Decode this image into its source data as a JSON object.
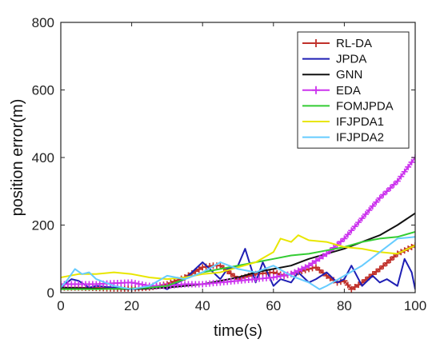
{
  "chart_data": {
    "type": "line",
    "title": "",
    "xlabel": "time(s)",
    "ylabel": "position error(m)",
    "xlim": [
      0,
      100
    ],
    "ylim": [
      0,
      800
    ],
    "xticks": [
      0,
      20,
      40,
      60,
      80,
      100
    ],
    "yticks": [
      0,
      200,
      400,
      600,
      800
    ],
    "grid": false,
    "legend_position": "top-right",
    "series": [
      {
        "name": "RL-DA",
        "color": "#c0302a",
        "marker": "plus",
        "x": [
          0,
          5,
          10,
          15,
          20,
          25,
          30,
          35,
          40,
          43,
          45,
          50,
          55,
          60,
          63,
          65,
          70,
          72,
          75,
          78,
          80,
          82,
          85,
          90,
          95,
          100
        ],
        "y": [
          15,
          15,
          14,
          12,
          12,
          15,
          25,
          45,
          75,
          80,
          80,
          40,
          55,
          60,
          50,
          55,
          70,
          75,
          50,
          30,
          35,
          10,
          30,
          70,
          115,
          140
        ]
      },
      {
        "name": "JPDA",
        "color": "#1f1fb4",
        "marker": "none",
        "x": [
          0,
          3,
          5,
          8,
          10,
          15,
          20,
          25,
          28,
          30,
          33,
          35,
          38,
          40,
          42,
          45,
          47,
          50,
          52,
          55,
          57,
          60,
          62,
          65,
          67,
          70,
          72,
          75,
          78,
          80,
          82,
          85,
          88,
          90,
          92,
          95,
          97,
          99,
          100
        ],
        "y": [
          15,
          40,
          35,
          15,
          20,
          15,
          10,
          15,
          20,
          10,
          30,
          40,
          70,
          90,
          70,
          40,
          70,
          80,
          130,
          30,
          90,
          20,
          40,
          30,
          60,
          30,
          40,
          60,
          30,
          40,
          80,
          20,
          50,
          30,
          40,
          20,
          100,
          60,
          10
        ]
      },
      {
        "name": "GNN",
        "color": "#111111",
        "marker": "none",
        "x": [
          0,
          10,
          20,
          25,
          30,
          35,
          40,
          45,
          50,
          55,
          60,
          65,
          70,
          75,
          80,
          85,
          90,
          95,
          100
        ],
        "y": [
          15,
          12,
          10,
          12,
          15,
          20,
          25,
          35,
          45,
          60,
          70,
          80,
          100,
          115,
          130,
          150,
          170,
          200,
          235
        ]
      },
      {
        "name": "EDA",
        "color": "#cc33ee",
        "marker": "plus",
        "x": [
          0,
          5,
          10,
          15,
          20,
          25,
          30,
          35,
          40,
          45,
          50,
          55,
          60,
          65,
          70,
          75,
          80,
          85,
          90,
          95,
          100
        ],
        "y": [
          25,
          25,
          25,
          28,
          30,
          20,
          20,
          25,
          25,
          30,
          35,
          40,
          45,
          55,
          80,
          115,
          160,
          220,
          280,
          330,
          400
        ]
      },
      {
        "name": "FOMJPDA",
        "color": "#33cc33",
        "marker": "none",
        "x": [
          0,
          10,
          20,
          25,
          30,
          35,
          40,
          45,
          50,
          55,
          60,
          65,
          70,
          75,
          80,
          85,
          90,
          95,
          100
        ],
        "y": [
          10,
          10,
          12,
          15,
          20,
          40,
          60,
          70,
          80,
          90,
          100,
          110,
          115,
          125,
          135,
          150,
          160,
          165,
          180
        ]
      },
      {
        "name": "IFJPDA1",
        "color": "#e8e600",
        "marker": "none",
        "x": [
          0,
          5,
          10,
          15,
          20,
          25,
          30,
          35,
          40,
          45,
          50,
          55,
          60,
          62,
          65,
          67,
          70,
          75,
          80,
          85,
          90,
          95,
          100
        ],
        "y": [
          45,
          55,
          55,
          60,
          55,
          45,
          40,
          45,
          55,
          60,
          75,
          90,
          120,
          160,
          150,
          170,
          155,
          150,
          135,
          130,
          120,
          115,
          140
        ]
      },
      {
        "name": "IFJPDA2",
        "color": "#66ccff",
        "marker": "none",
        "x": [
          0,
          2,
          4,
          6,
          8,
          10,
          15,
          20,
          25,
          30,
          35,
          40,
          45,
          50,
          55,
          60,
          65,
          70,
          73,
          75,
          80,
          85,
          90,
          95,
          100
        ],
        "y": [
          15,
          40,
          70,
          55,
          60,
          40,
          20,
          10,
          20,
          50,
          40,
          60,
          90,
          70,
          60,
          80,
          50,
          30,
          10,
          20,
          50,
          80,
          120,
          160,
          165
        ]
      }
    ]
  }
}
